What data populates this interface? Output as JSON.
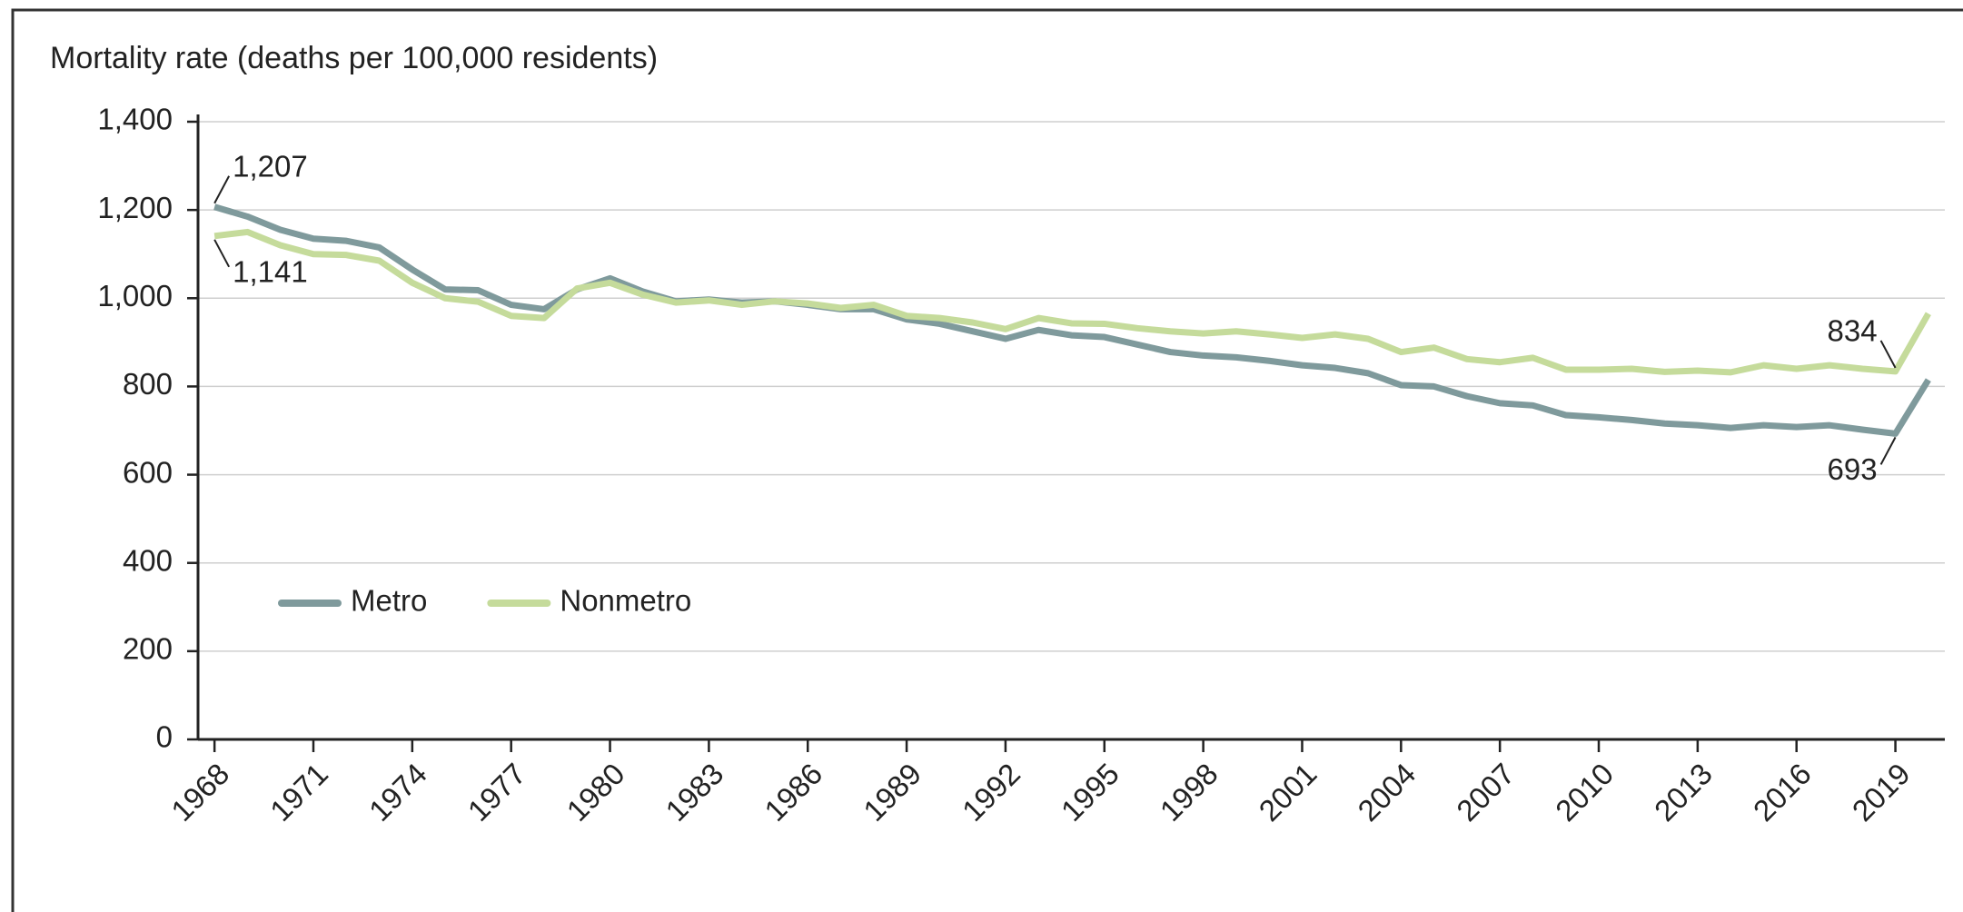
{
  "chart_data": {
    "type": "line",
    "title": "Mortality rate (deaths per 100,000 residents)",
    "x": [
      1968,
      1969,
      1970,
      1971,
      1972,
      1973,
      1974,
      1975,
      1976,
      1977,
      1978,
      1979,
      1980,
      1981,
      1982,
      1983,
      1984,
      1985,
      1986,
      1987,
      1988,
      1989,
      1990,
      1991,
      1992,
      1993,
      1994,
      1995,
      1996,
      1997,
      1998,
      1999,
      2000,
      2001,
      2002,
      2003,
      2004,
      2005,
      2006,
      2007,
      2008,
      2009,
      2010,
      2011,
      2012,
      2013,
      2014,
      2015,
      2016,
      2017,
      2018,
      2019,
      2020
    ],
    "series": [
      {
        "name": "Metro",
        "color": "#7f9a9c",
        "values": [
          1207,
          1185,
          1155,
          1135,
          1130,
          1115,
          1065,
          1020,
          1018,
          985,
          975,
          1020,
          1045,
          1015,
          993,
          997,
          990,
          993,
          985,
          975,
          975,
          952,
          942,
          925,
          908,
          928,
          916,
          912,
          895,
          878,
          870,
          866,
          858,
          848,
          842,
          830,
          803,
          800,
          778,
          762,
          757,
          735,
          730,
          724,
          716,
          712,
          706,
          712,
          708,
          712,
          702,
          693,
          815
        ],
        "value_labels": [
          "1,207",
          null,
          null,
          null,
          null,
          null,
          null,
          null,
          null,
          null,
          null,
          null,
          null,
          null,
          null,
          null,
          null,
          null,
          null,
          null,
          null,
          null,
          null,
          null,
          null,
          null,
          null,
          null,
          null,
          null,
          null,
          null,
          null,
          null,
          null,
          null,
          null,
          null,
          null,
          null,
          null,
          null,
          null,
          null,
          null,
          null,
          null,
          null,
          null,
          null,
          null,
          "693",
          null
        ]
      },
      {
        "name": "Nonmetro",
        "color": "#c5db9b",
        "values": [
          1141,
          1150,
          1120,
          1100,
          1098,
          1085,
          1035,
          1000,
          992,
          960,
          955,
          1022,
          1035,
          1008,
          990,
          995,
          985,
          993,
          988,
          978,
          985,
          960,
          955,
          945,
          930,
          955,
          943,
          942,
          932,
          925,
          920,
          925,
          918,
          910,
          918,
          908,
          878,
          888,
          862,
          855,
          865,
          838,
          838,
          840,
          833,
          836,
          832,
          848,
          840,
          848,
          840,
          834,
          965
        ],
        "value_labels": [
          "1,141",
          null,
          null,
          null,
          null,
          null,
          null,
          null,
          null,
          null,
          null,
          null,
          null,
          null,
          null,
          null,
          null,
          null,
          null,
          null,
          null,
          null,
          null,
          null,
          null,
          null,
          null,
          null,
          null,
          null,
          null,
          null,
          null,
          null,
          null,
          null,
          null,
          null,
          null,
          null,
          null,
          null,
          null,
          null,
          null,
          null,
          null,
          null,
          null,
          null,
          null,
          "834",
          null
        ]
      }
    ],
    "xlim": [
      1967.5,
      2020.5
    ],
    "xticks": [
      1968,
      1971,
      1974,
      1977,
      1980,
      1983,
      1986,
      1989,
      1992,
      1995,
      1998,
      2001,
      2004,
      2007,
      2010,
      2013,
      2016,
      2019
    ],
    "ylim": [
      0,
      1400
    ],
    "yticks": [
      0,
      200,
      400,
      600,
      800,
      {
        "value": 1000,
        "label": "1,000"
      },
      {
        "value": 1200,
        "label": "1,200"
      },
      {
        "value": 1400,
        "label": "1,400"
      }
    ],
    "grid": true,
    "legend": "lower left"
  }
}
